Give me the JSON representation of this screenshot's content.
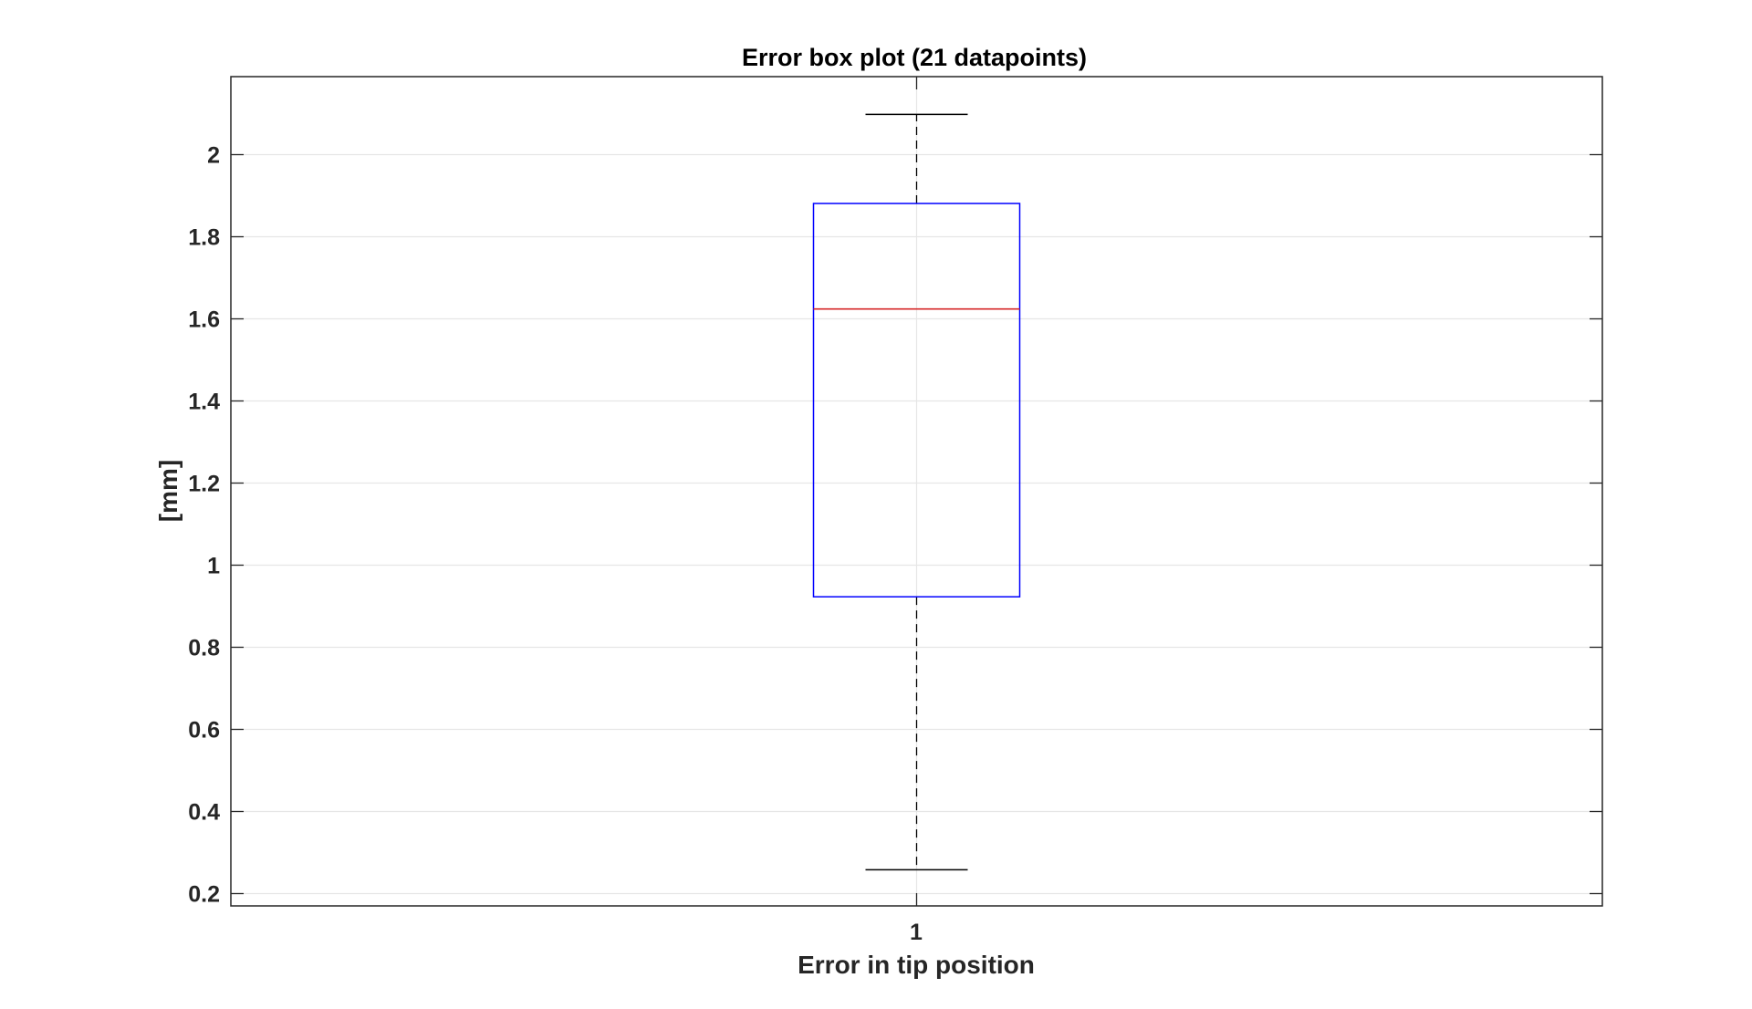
{
  "chart_data": {
    "type": "box",
    "title": "Error box plot (21 datapoints)",
    "xlabel": "Error in tip position",
    "ylabel": "[mm]",
    "categories": [
      "1"
    ],
    "ylim": [
      0.17,
      2.19
    ],
    "yticks": [
      "0.2",
      "0.4",
      "0.6",
      "0.8",
      "1",
      "1.2",
      "1.4",
      "1.6",
      "1.8",
      "2"
    ],
    "grid": true,
    "box": {
      "lower_whisker": 0.258,
      "q1": 0.923,
      "median": 1.624,
      "q3": 1.881,
      "upper_whisker": 2.098
    },
    "colors": {
      "box": "#0000ff",
      "median": "#d62728",
      "whisker": "#000000",
      "grid": "#e6e6e6",
      "axes": "#262626"
    }
  }
}
